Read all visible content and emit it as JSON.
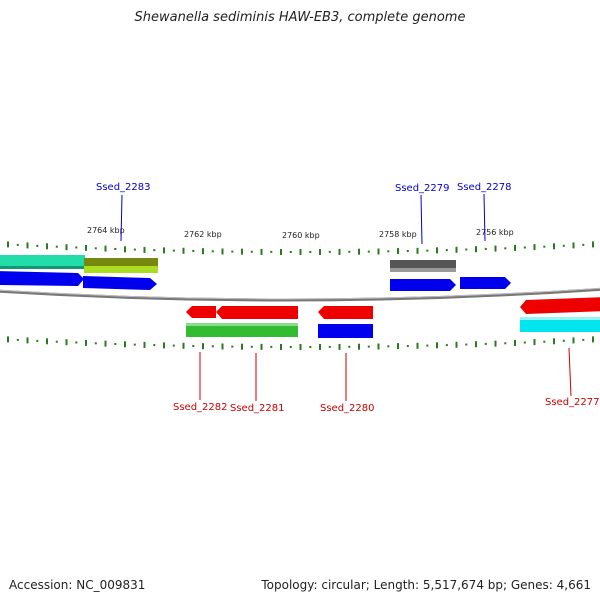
{
  "title": "Shewanella sediminis HAW-EB3, complete genome",
  "footer": {
    "accession": "Accession: NC_009831",
    "topology": "Topology: circular; Length: 5,517,674 bp; Genes: 4,661"
  },
  "scale": {
    "labels": [
      "2764 kbp",
      "2762 kbp",
      "2760 kbp",
      "2758 kbp",
      "2756 kbp"
    ]
  },
  "genes": [
    {
      "id": "Ssed_2283",
      "color": "#0000cc"
    },
    {
      "id": "Ssed_2279",
      "color": "#0000cc"
    },
    {
      "id": "Ssed_2278",
      "color": "#0000cc"
    },
    {
      "id": "Ssed_2282",
      "color": "#cc0000"
    },
    {
      "id": "Ssed_2281",
      "color": "#cc0000"
    },
    {
      "id": "Ssed_2280",
      "color": "#cc0000"
    },
    {
      "id": "Ssed_2277",
      "color": "#cc0000"
    }
  ],
  "colors": {
    "forward_cds": "#0000ee",
    "reverse_cds": "#ee0000",
    "backbone": "#888888",
    "tick": "#2a7a1e",
    "green_feature": "#33bb33",
    "teal_feature": "#22ddaa",
    "olive_feature": "#889922",
    "gray_feature": "#555555",
    "cyan_feature": "#00e5ee"
  }
}
